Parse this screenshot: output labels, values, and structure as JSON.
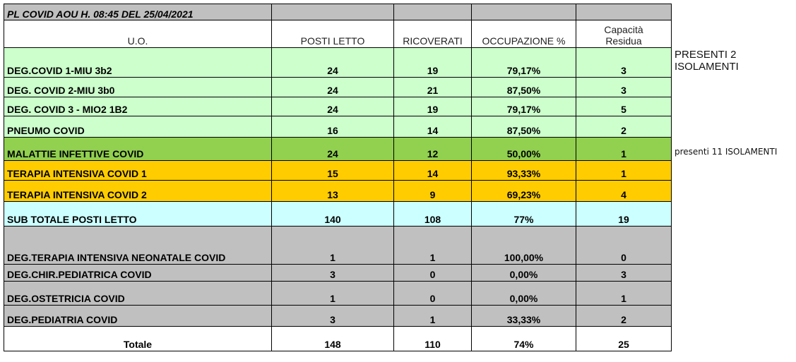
{
  "title": "PL COVID AOU H. 08:45 DEL 25/04/2021",
  "headers": [
    "U.O.",
    "POSTI LETTO",
    "RICOVERATI",
    "OCCUPAZIONE %",
    "Capacità Residua"
  ],
  "colors": {
    "light_green": "#ccffcc",
    "green": "#92d050",
    "orange": "#ffcc00",
    "cyan": "#ccffff",
    "gray": "#c0c0c0",
    "white": "#ffffff"
  },
  "rows": [
    {
      "uo": "DEG.COVID 1-MIU 3b2",
      "posti": "24",
      "ricoverati": "19",
      "occupazione": "79,17%",
      "capacita": "3",
      "color": "light_green"
    },
    {
      "uo": "DEG. COVID 2-MIU 3b0",
      "posti": "24",
      "ricoverati": "21",
      "occupazione": "87,50%",
      "capacita": "3",
      "color": "light_green"
    },
    {
      "uo": "DEG. COVID 3 - MIO2 1B2",
      "posti": "24",
      "ricoverati": "19",
      "occupazione": "79,17%",
      "capacita": "5",
      "color": "light_green"
    },
    {
      "uo": "PNEUMO COVID",
      "posti": "16",
      "ricoverati": "14",
      "occupazione": "87,50%",
      "capacita": "2",
      "color": "light_green"
    },
    {
      "uo": "MALATTIE INFETTIVE COVID",
      "posti": "24",
      "ricoverati": "12",
      "occupazione": "50,00%",
      "capacita": "1",
      "color": "green"
    },
    {
      "uo": "TERAPIA INTENSIVA COVID 1",
      "posti": "15",
      "ricoverati": "14",
      "occupazione": "93,33%",
      "capacita": "1",
      "color": "orange"
    },
    {
      "uo": "TERAPIA INTENSIVA COVID 2",
      "posti": "13",
      "ricoverati": "9",
      "occupazione": "69,23%",
      "capacita": "4",
      "color": "orange"
    },
    {
      "uo": "SUB TOTALE POSTI LETTO",
      "posti": "140",
      "ricoverati": "108",
      "occupazione": "77%",
      "capacita": "19",
      "color": "cyan"
    },
    {
      "uo": "DEG.TERAPIA INTENSIVA NEONATALE COVID",
      "posti": "1",
      "ricoverati": "1",
      "occupazione": "100,00%",
      "capacita": "0",
      "color": "gray"
    },
    {
      "uo": "DEG.CHIR.PEDIATRICA COVID",
      "posti": "3",
      "ricoverati": "0",
      "occupazione": "0,00%",
      "capacita": "3",
      "color": "gray"
    },
    {
      "uo": "DEG.OSTETRICIA COVID",
      "posti": "1",
      "ricoverati": "0",
      "occupazione": "0,00%",
      "capacita": "1",
      "color": "gray"
    },
    {
      "uo": "DEG.PEDIATRIA COVID",
      "posti": "3",
      "ricoverati": "1",
      "occupazione": "33,33%",
      "capacita": "2",
      "color": "gray"
    },
    {
      "uo": "Totale",
      "posti": "148",
      "ricoverati": "110",
      "occupazione": "74%",
      "capacita": "25",
      "color": "white"
    }
  ],
  "notes": [
    "PRESENTI 2 ISOLAMENTI",
    "presenti 11 ISOLAMENTI"
  ]
}
